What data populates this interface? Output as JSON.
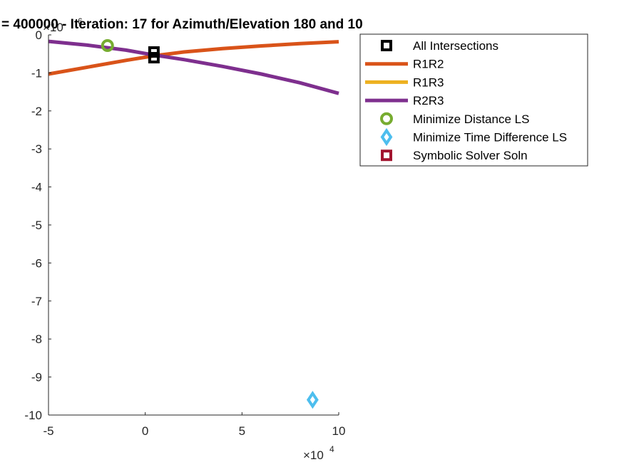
{
  "chart_data": {
    "type": "line",
    "title": "= 400000 - Iteration: 17 for Azimuth/Elevation 180 and 10",
    "xlabel": "",
    "ylabel": "",
    "x_exponent": {
      "base": "×10",
      "power": "4"
    },
    "y_exponent": {
      "base": "×10",
      "power": "6"
    },
    "xlim": [
      -50000,
      100000
    ],
    "ylim": [
      -10000000,
      0
    ],
    "xticks": [
      -50000,
      0,
      50000,
      100000
    ],
    "xtick_labels": [
      "-5",
      "0",
      "5",
      "10"
    ],
    "yticks": [
      0,
      -1000000,
      -2000000,
      -3000000,
      -4000000,
      -5000000,
      -6000000,
      -7000000,
      -8000000,
      -9000000,
      -10000000
    ],
    "ytick_labels": [
      "0",
      "-1",
      "-2",
      "-3",
      "-4",
      "-5",
      "-6",
      "-7",
      "-8",
      "-9",
      "-10"
    ],
    "grid": false,
    "legend_position": "outside-top-right",
    "series": [
      {
        "name": "All Intersections",
        "kind": "marker",
        "marker": "square",
        "color": "#000000",
        "x": [
          4500,
          4500
        ],
        "y": [
          -450000,
          -600000
        ]
      },
      {
        "name": "R1R2",
        "kind": "line",
        "color": "#D95319",
        "x": [
          -50000,
          -30000,
          -10000,
          4500,
          20000,
          40000,
          60000,
          80000,
          100000
        ],
        "y": [
          -1030000,
          -850000,
          -670000,
          -550000,
          -450000,
          -360000,
          -290000,
          -230000,
          -180000
        ]
      },
      {
        "name": "R1R3",
        "kind": "line",
        "color": "#EDB120",
        "x": [],
        "y": []
      },
      {
        "name": "R2R3",
        "kind": "line",
        "color": "#7E2F8E",
        "x": [
          -50000,
          -30000,
          -10000,
          4500,
          20000,
          40000,
          60000,
          80000,
          100000
        ],
        "y": [
          -170000,
          -270000,
          -400000,
          -530000,
          -650000,
          -830000,
          -1030000,
          -1260000,
          -1540000
        ]
      },
      {
        "name": "Minimize Distance LS",
        "kind": "marker",
        "marker": "circle",
        "color": "#77AC30",
        "x": [
          -19500
        ],
        "y": [
          -280000
        ]
      },
      {
        "name": "Minimize Time Difference LS",
        "kind": "marker",
        "marker": "diamond",
        "color": "#4DBEEE",
        "x": [
          86500
        ],
        "y": [
          -9600000
        ]
      },
      {
        "name": "Symbolic Solver Soln",
        "kind": "marker",
        "marker": "square",
        "color": "#A2142F",
        "x": [],
        "y": []
      }
    ]
  }
}
